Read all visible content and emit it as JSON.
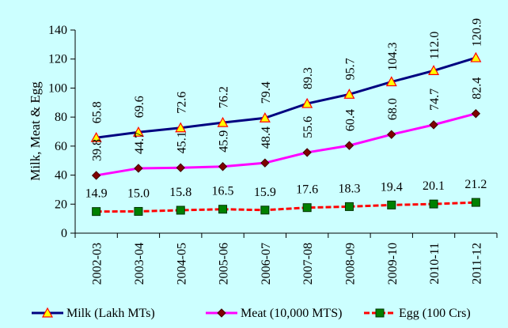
{
  "chart_data": {
    "type": "line",
    "title": "",
    "xlabel": "",
    "ylabel": "Milk, Meat & Egg",
    "ylim": [
      0,
      140
    ],
    "yticks": [
      0,
      20,
      40,
      60,
      80,
      100,
      120,
      140
    ],
    "grid": false,
    "legend_position": "bottom",
    "categories": [
      "2002-03",
      "2003-04",
      "2004-05",
      "2005-06",
      "2006-07",
      "2007-08",
      "2008-09",
      "2009-10",
      "2010-11",
      "2011-12"
    ],
    "series": [
      {
        "name": "Milk (Lakh MTs)",
        "values": [
          65.8,
          69.6,
          72.6,
          76.2,
          79.4,
          89.3,
          95.7,
          104.3,
          112.0,
          120.9
        ],
        "labels": [
          "65.8",
          "69.6",
          "72.6",
          "76.2",
          "79.4",
          "89.3",
          "95.7",
          "104.3",
          "112.0",
          "120.9"
        ],
        "color": "#000080",
        "marker": "triangle",
        "marker_fill": "#ffff00",
        "marker_stroke": "#ff0000"
      },
      {
        "name": "Meat (10,000 MTS)",
        "values": [
          39.8,
          44.7,
          45.1,
          45.9,
          48.4,
          55.6,
          60.4,
          68.0,
          74.7,
          82.4
        ],
        "labels": [
          "39.8",
          "44.7",
          "45.1",
          "45.9",
          "48.4",
          "55.6",
          "60.4",
          "68.0",
          "74.7",
          "82.4"
        ],
        "color": "#ff00ff",
        "marker": "diamond",
        "marker_fill": "#800000",
        "marker_stroke": "#400000"
      },
      {
        "name": "Egg (100 Crs)",
        "values": [
          14.9,
          15.0,
          15.8,
          16.5,
          15.9,
          17.6,
          18.3,
          19.4,
          20.1,
          21.2
        ],
        "labels": [
          "14.9",
          "15.0",
          "15.8",
          "16.5",
          "15.9",
          "17.6",
          "18.3",
          "19.4",
          "20.1",
          "21.2"
        ],
        "color": "#ff0000",
        "dashed": true,
        "marker": "square",
        "marker_fill": "#008000",
        "marker_stroke": "#003300"
      }
    ]
  }
}
